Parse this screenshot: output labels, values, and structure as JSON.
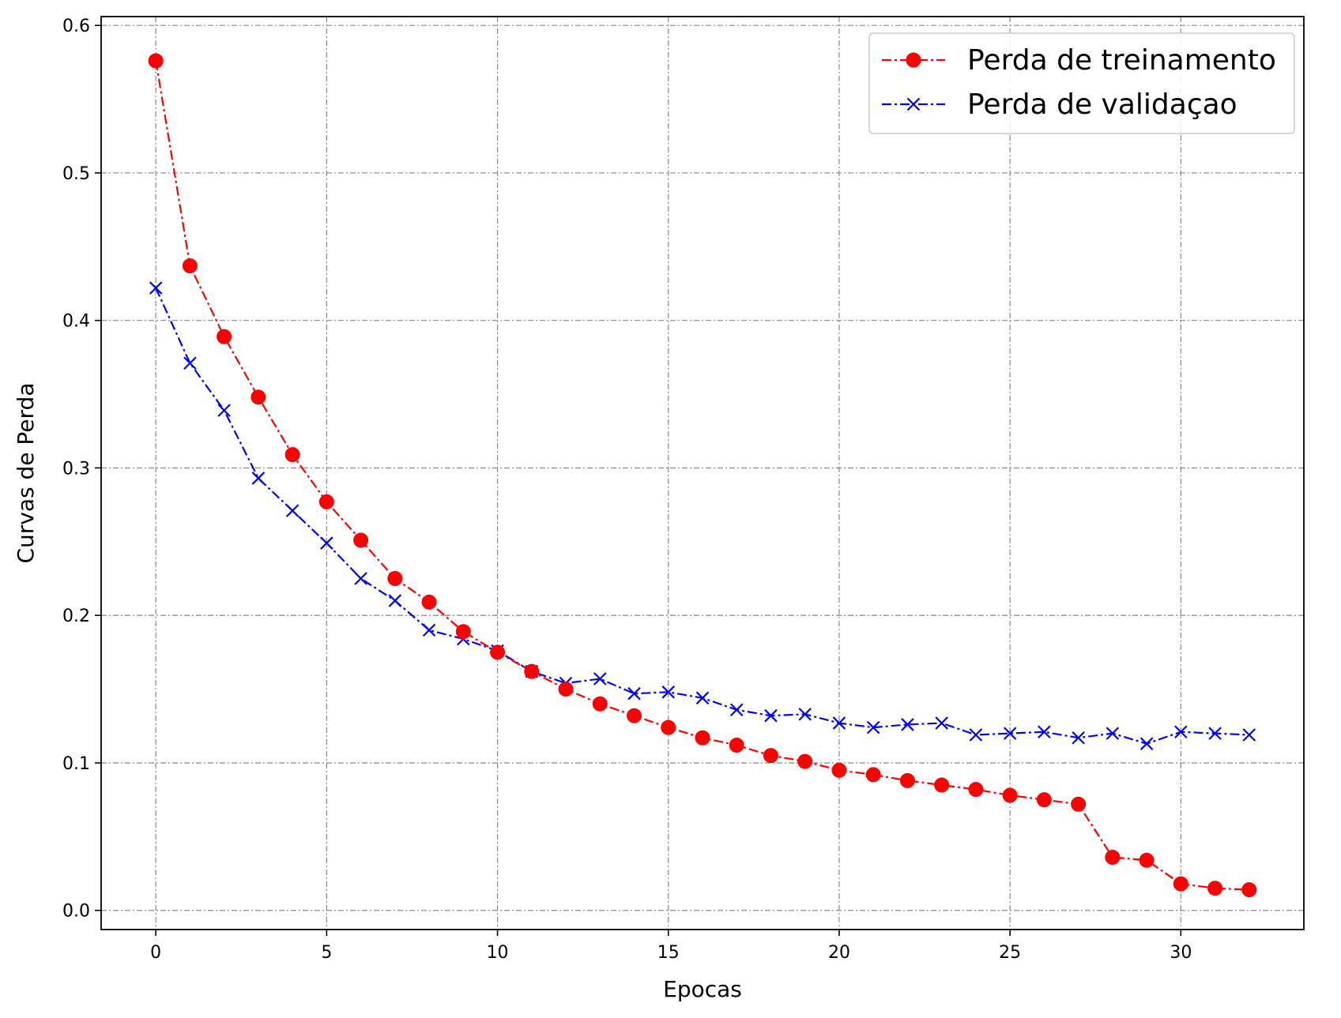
{
  "chart_data": {
    "type": "line",
    "title": "",
    "xlabel": "Epocas",
    "ylabel": "Curvas de Perda",
    "xlim": [
      -1.6,
      33.6
    ],
    "ylim": [
      -0.013,
      0.606
    ],
    "xticks": [
      0,
      5,
      10,
      15,
      20,
      25,
      30
    ],
    "yticks": [
      0.0,
      0.1,
      0.2,
      0.3,
      0.4,
      0.5,
      0.6
    ],
    "xtick_labels": [
      "0",
      "5",
      "10",
      "15",
      "20",
      "25",
      "30"
    ],
    "ytick_labels": [
      "0.0",
      "0.1",
      "0.2",
      "0.3",
      "0.4",
      "0.5",
      "0.6"
    ],
    "grid": true,
    "legend_position": "top-right",
    "x": [
      0,
      1,
      2,
      3,
      4,
      5,
      6,
      7,
      8,
      9,
      10,
      11,
      12,
      13,
      14,
      15,
      16,
      17,
      18,
      19,
      20,
      21,
      22,
      23,
      24,
      25,
      26,
      27,
      28,
      29,
      30,
      31,
      32
    ],
    "series": [
      {
        "name": "Perda de treinamento",
        "color": "#ff0000",
        "marker": "circle",
        "linestyle": "dash-dot",
        "values": [
          0.576,
          0.437,
          0.389,
          0.348,
          0.309,
          0.277,
          0.251,
          0.225,
          0.209,
          0.189,
          0.175,
          0.162,
          0.15,
          0.14,
          0.132,
          0.124,
          0.117,
          0.112,
          0.105,
          0.101,
          0.095,
          0.092,
          0.088,
          0.085,
          0.082,
          0.078,
          0.075,
          0.072,
          0.036,
          0.034,
          0.018,
          0.015,
          0.014
        ]
      },
      {
        "name": "Perda de validaçao",
        "color": "#0000ff",
        "marker": "x",
        "linestyle": "dash-dot",
        "values": [
          0.422,
          0.371,
          0.339,
          0.293,
          0.271,
          0.249,
          0.225,
          0.21,
          0.19,
          0.184,
          0.176,
          0.162,
          0.154,
          0.157,
          0.147,
          0.148,
          0.144,
          0.136,
          0.132,
          0.133,
          0.127,
          0.124,
          0.126,
          0.127,
          0.119,
          0.12,
          0.121,
          0.117,
          0.12,
          0.113,
          0.121,
          0.12,
          0.119
        ]
      }
    ]
  }
}
